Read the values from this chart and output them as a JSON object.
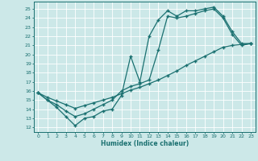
{
  "xlabel": "Humidex (Indice chaleur)",
  "bg_color": "#cce8e8",
  "line_color": "#1a7070",
  "grid_color": "#ffffff",
  "xlim": [
    -0.5,
    23.5
  ],
  "ylim": [
    11.5,
    25.8
  ],
  "xticks": [
    0,
    1,
    2,
    3,
    4,
    5,
    6,
    7,
    8,
    9,
    10,
    11,
    12,
    13,
    14,
    15,
    16,
    17,
    18,
    19,
    20,
    21,
    22,
    23
  ],
  "yticks": [
    12,
    13,
    14,
    15,
    16,
    17,
    18,
    19,
    20,
    21,
    22,
    23,
    24,
    25
  ],
  "line1_x": [
    0,
    1,
    2,
    3,
    4,
    5,
    6,
    7,
    8,
    9,
    10,
    11,
    12,
    13,
    14,
    15,
    16,
    17,
    18,
    19,
    20,
    21,
    22,
    23
  ],
  "line1_y": [
    15.8,
    15.0,
    14.2,
    13.2,
    12.2,
    13.0,
    13.2,
    13.8,
    14.0,
    15.5,
    19.8,
    17.0,
    22.0,
    23.8,
    24.8,
    24.2,
    24.8,
    24.8,
    25.0,
    25.2,
    24.2,
    22.5,
    21.2,
    21.2
  ],
  "line2_x": [
    0,
    1,
    2,
    3,
    4,
    5,
    6,
    7,
    8,
    9,
    10,
    11,
    12,
    13,
    14,
    15,
    16,
    17,
    18,
    19,
    20,
    21,
    22,
    23
  ],
  "line2_y": [
    15.8,
    15.0,
    14.5,
    13.8,
    13.2,
    13.5,
    14.0,
    14.5,
    15.0,
    16.0,
    16.5,
    16.8,
    17.2,
    20.5,
    24.2,
    24.0,
    24.2,
    24.5,
    24.8,
    25.0,
    24.0,
    22.2,
    21.0,
    21.2
  ],
  "line3_x": [
    0,
    1,
    2,
    3,
    4,
    5,
    6,
    7,
    8,
    9,
    10,
    11,
    12,
    13,
    14,
    15,
    16,
    17,
    18,
    19,
    20,
    21,
    22,
    23
  ],
  "line3_y": [
    15.8,
    15.3,
    14.9,
    14.5,
    14.1,
    14.4,
    14.7,
    15.0,
    15.3,
    15.7,
    16.1,
    16.4,
    16.8,
    17.2,
    17.7,
    18.2,
    18.8,
    19.3,
    19.8,
    20.3,
    20.8,
    21.0,
    21.1,
    21.2
  ]
}
